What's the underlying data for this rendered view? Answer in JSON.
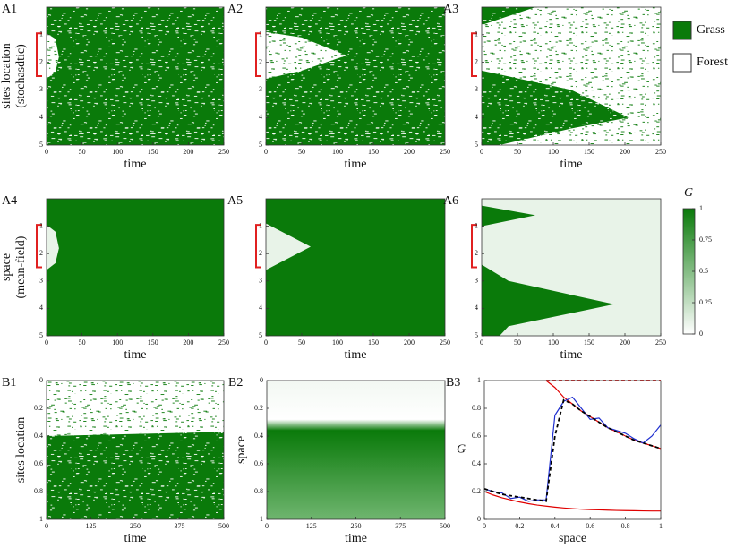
{
  "chart_data": [
    {
      "type": "heatmap",
      "label": "A1",
      "pattern": "stochastic",
      "ylabel": [
        "sites location",
        "(stochasdtic)"
      ],
      "xlabel": "time",
      "xlim": [
        0,
        250
      ],
      "ylim": [
        0,
        5
      ],
      "y_inverted": true,
      "xticks": [
        0,
        50,
        100,
        150,
        200,
        250
      ],
      "yticks": [
        1,
        2,
        3,
        4,
        5
      ]
    },
    {
      "type": "heatmap",
      "label": "A2",
      "pattern": "stochastic",
      "xlabel": "time",
      "xlim": [
        0,
        250
      ],
      "ylim": [
        0,
        5
      ],
      "y_inverted": true,
      "xticks": [
        0,
        50,
        100,
        150,
        200,
        250
      ],
      "yticks": [
        1,
        2,
        3,
        4,
        5
      ]
    },
    {
      "type": "heatmap",
      "label": "A3",
      "pattern": "stochastic",
      "xlabel": "time",
      "xlim": [
        0,
        250
      ],
      "ylim": [
        0,
        5
      ],
      "y_inverted": true,
      "xticks": [
        0,
        50,
        100,
        150,
        200,
        250
      ],
      "yticks": [
        1,
        2,
        3,
        4,
        5
      ]
    },
    {
      "type": "heatmap",
      "label": "A4",
      "pattern": "mean-field",
      "ylabel": [
        "space",
        "(mean-field)"
      ],
      "xlabel": "time",
      "xlim": [
        0,
        250
      ],
      "ylim": [
        0,
        5
      ],
      "y_inverted": true,
      "xticks": [
        0,
        50,
        100,
        150,
        200,
        250
      ],
      "yticks": [
        1,
        2,
        3,
        4,
        5
      ]
    },
    {
      "type": "heatmap",
      "label": "A5",
      "pattern": "mean-field",
      "xlabel": "time",
      "xlim": [
        0,
        250
      ],
      "ylim": [
        0,
        5
      ],
      "y_inverted": true,
      "xticks": [
        0,
        50,
        100,
        150,
        200,
        250
      ],
      "yticks": [
        1,
        2,
        3,
        4,
        5
      ]
    },
    {
      "type": "heatmap",
      "label": "A6",
      "pattern": "mean-field",
      "xlabel": "time",
      "xlim": [
        0,
        250
      ],
      "ylim": [
        0,
        5
      ],
      "y_inverted": true,
      "xticks": [
        0,
        50,
        100,
        150,
        200,
        250
      ],
      "yticks": [
        1,
        2,
        3,
        4,
        5
      ]
    },
    {
      "type": "heatmap",
      "label": "B1",
      "pattern": "stochastic",
      "ylabel": [
        "sites location"
      ],
      "xlabel": "time",
      "xlim": [
        0,
        500
      ],
      "ylim": [
        0,
        1
      ],
      "y_inverted": true,
      "xticks": [
        0,
        125,
        250,
        375,
        500
      ],
      "yticks": [
        0,
        0.2,
        0.4,
        0.6,
        0.8,
        1
      ]
    },
    {
      "type": "heatmap",
      "label": "B2",
      "pattern": "mean-field",
      "ylabel": [
        "space"
      ],
      "xlabel": "time",
      "xlim": [
        0,
        500
      ],
      "ylim": [
        0,
        1
      ],
      "y_inverted": true,
      "xticks": [
        0,
        125,
        250,
        375,
        500
      ],
      "yticks": [
        0,
        0.2,
        0.4,
        0.6,
        0.8,
        1
      ]
    },
    {
      "type": "line",
      "label": "B3",
      "ylabel": [
        "G"
      ],
      "xlabel": "space",
      "xlim": [
        0,
        1
      ],
      "ylim": [
        0,
        1
      ],
      "xticks": [
        0,
        0.2,
        0.4,
        0.6,
        0.8,
        1
      ],
      "yticks": [
        0,
        0.2,
        0.4,
        0.6,
        0.8,
        1
      ],
      "x": [
        0,
        0.05,
        0.1,
        0.15,
        0.2,
        0.25,
        0.3,
        0.35,
        0.4,
        0.45,
        0.5,
        0.55,
        0.6,
        0.65,
        0.7,
        0.75,
        0.8,
        0.85,
        0.9,
        0.95,
        1
      ],
      "series": [
        {
          "color": "#e00000",
          "dash": false,
          "values": [
            0.2,
            0.175,
            0.155,
            0.14,
            0.125,
            0.113,
            0.103,
            0.095,
            0.088,
            0.082,
            0.077,
            0.073,
            0.07,
            0.068,
            0.066,
            0.064,
            0.063,
            0.062,
            0.061,
            0.06,
            0.06
          ]
        },
        {
          "color": "#e00000",
          "dash": false,
          "values": [
            null,
            null,
            null,
            null,
            null,
            null,
            null,
            1,
            0.95,
            0.88,
            0.83,
            0.78,
            0.74,
            0.7,
            0.66,
            0.63,
            0.6,
            0.57,
            0.55,
            0.53,
            0.51
          ]
        },
        {
          "color": "#e00000",
          "dash": true,
          "values": [
            null,
            null,
            null,
            null,
            null,
            null,
            null,
            1,
            1,
            1,
            1,
            1,
            1,
            1,
            1,
            1,
            1,
            1,
            1,
            1,
            1
          ]
        },
        {
          "color": "#1f2fd0",
          "dash": false,
          "values": [
            0.22,
            0.2,
            0.19,
            0.15,
            0.16,
            0.13,
            0.14,
            0.14,
            0.75,
            0.85,
            0.88,
            0.8,
            0.72,
            0.73,
            0.66,
            0.64,
            0.62,
            0.58,
            0.55,
            0.6,
            0.68
          ]
        },
        {
          "color": "#000000",
          "dash": true,
          "values": [
            0.22,
            0.2,
            0.18,
            0.17,
            0.16,
            0.15,
            0.14,
            0.13,
            0.6,
            0.86,
            0.83,
            0.78,
            0.74,
            0.7,
            0.66,
            0.63,
            0.6,
            0.57,
            0.55,
            0.53,
            0.51
          ]
        }
      ]
    }
  ],
  "legend": [
    {
      "name": "Grass",
      "color": "#0a7a0a"
    },
    {
      "name": "Forest",
      "color": "#ffffff"
    }
  ],
  "colorbar": {
    "title": "G",
    "lim": [
      0,
      1
    ],
    "ticks": [
      0,
      0.25,
      0.5,
      0.75,
      1
    ],
    "colors": [
      "#ffffff",
      "#0a7a0a"
    ]
  }
}
